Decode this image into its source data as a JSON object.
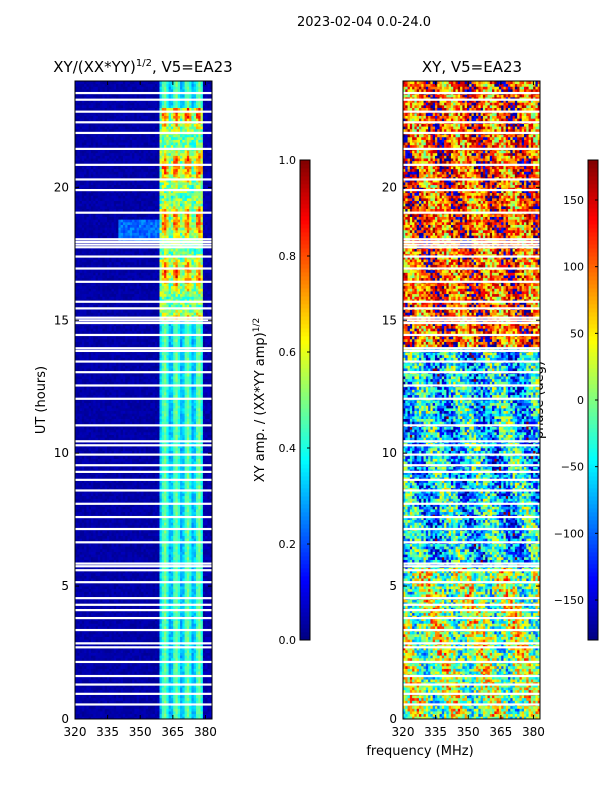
{
  "suptitle": "2023-02-04 0.0-24.0",
  "chart_data": [
    {
      "type": "heatmap",
      "title": "XY/(XX*YY)",
      "title_exponent": "1/2",
      "title_suffix": ", V5=EA23",
      "xlabel": "",
      "ylabel": "UT (hours)",
      "xlim": [
        320,
        383
      ],
      "ylim": [
        0,
        24
      ],
      "xticks": [
        "320",
        "335",
        "350",
        "365",
        "380"
      ],
      "xtick_values": [
        320,
        335,
        350,
        365,
        380
      ],
      "yticks": [
        "0",
        "5",
        "10",
        "15",
        "20"
      ],
      "ytick_values": [
        0,
        5,
        10,
        15,
        20
      ],
      "colorbar": {
        "label": "XY amp. / (XX*YY amp)",
        "label_exponent": "1/2",
        "range": [
          0.0,
          1.0
        ],
        "ticks": [
          "0.0",
          "0.2",
          "0.4",
          "0.6",
          "0.8",
          "1.0"
        ],
        "tick_values": [
          0.0,
          0.2,
          0.4,
          0.6,
          0.8,
          1.0
        ],
        "colormap": "jet"
      },
      "bright_band_MHz": [
        360,
        378
      ],
      "high_value_UT_hours": [
        15,
        23
      ],
      "background_value": 0.02
    },
    {
      "type": "heatmap",
      "title": "XY, V5=EA23",
      "xlabel": "frequency (MHz)",
      "ylabel": "",
      "xlim": [
        320,
        383
      ],
      "ylim": [
        0,
        24
      ],
      "xticks": [
        "320",
        "335",
        "350",
        "365",
        "380"
      ],
      "xtick_values": [
        320,
        335,
        350,
        365,
        380
      ],
      "yticks": [
        "0",
        "5",
        "10",
        "15",
        "20"
      ],
      "ytick_values": [
        0,
        5,
        10,
        15,
        20
      ],
      "colorbar": {
        "label": "phase (deg)",
        "range": [
          -180,
          180
        ],
        "ticks": [
          "−150",
          "−100",
          "−50",
          "0",
          "50",
          "100",
          "150"
        ],
        "tick_values": [
          -150,
          -100,
          -50,
          0,
          50,
          100,
          150
        ],
        "colormap": "jet"
      },
      "phase_regimes": [
        {
          "ut_range": [
            0,
            5.7
          ],
          "mean_deg": 10
        },
        {
          "ut_range": [
            5.7,
            14.0
          ],
          "mean_deg": -60
        },
        {
          "ut_range": [
            14.0,
            24.0
          ],
          "mean_deg": 110
        }
      ]
    }
  ],
  "blank_UT_rows": [
    0.55,
    0.95,
    1.3,
    1.62,
    2.15,
    2.7,
    2.85,
    3.35,
    3.8,
    4.1,
    4.3,
    4.55,
    5.15,
    5.6,
    5.75,
    5.85,
    6.65,
    7.15,
    7.6,
    8.1,
    8.6,
    9.0,
    9.3,
    9.55,
    9.95,
    10.3,
    10.45,
    11.05,
    12.05,
    12.55,
    13.05,
    13.45,
    13.85,
    13.95,
    14.45,
    14.9,
    15.0,
    15.1,
    15.45,
    15.7,
    16.45,
    16.95,
    17.4,
    17.75,
    17.85,
    17.95,
    18.05,
    19.05,
    19.9,
    20.3,
    20.85,
    21.45,
    22.05,
    22.45,
    22.85,
    23.3,
    23.55
  ]
}
